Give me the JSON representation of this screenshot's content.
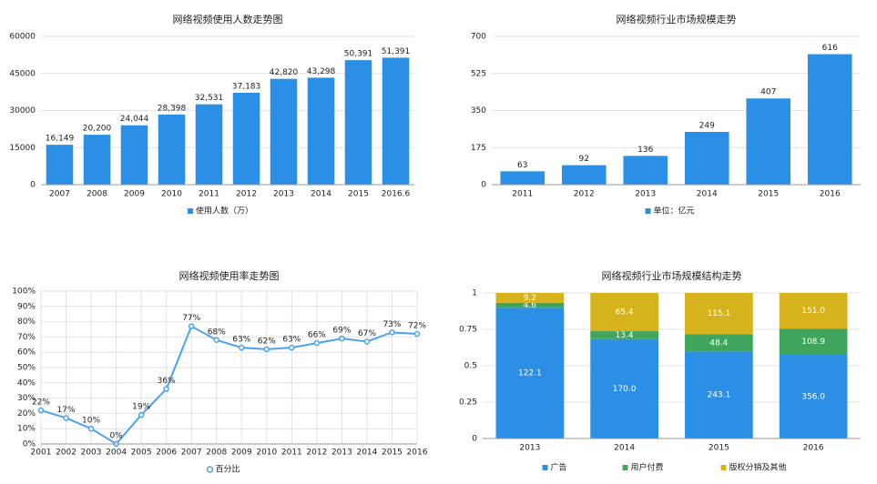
{
  "chart_data": [
    {
      "type": "bar",
      "title": "网络视频使用人数走势图",
      "categories": [
        "2007",
        "2008",
        "2009",
        "2010",
        "2011",
        "2012",
        "2013",
        "2014",
        "2015",
        "2016.6"
      ],
      "series": [
        {
          "name": "使用人数（万）",
          "color": "#2b8fe6",
          "values": [
            16149,
            20200,
            24044,
            28398,
            32531,
            37183,
            42820,
            43298,
            50391,
            51391
          ],
          "value_labels": [
            "16,149",
            "20,200",
            "24,044",
            "28,398",
            "32,531",
            "37,183",
            "42,820",
            "43,298",
            "50,391",
            "51,391"
          ]
        }
      ],
      "ylim": [
        0,
        60000
      ],
      "yticks": [
        0,
        15000,
        30000,
        45000,
        60000
      ],
      "grid": true
    },
    {
      "type": "bar",
      "title": "网络视频行业市场规模走势",
      "categories": [
        "2011",
        "2012",
        "2013",
        "2014",
        "2015",
        "2016"
      ],
      "series": [
        {
          "name": "单位：亿元",
          "color": "#2b8fe6",
          "values": [
            63,
            92,
            136,
            249,
            407,
            616
          ]
        }
      ],
      "ylim": [
        0,
        700
      ],
      "yticks": [
        0,
        175,
        350,
        525,
        700
      ],
      "grid": true
    },
    {
      "type": "line",
      "title": "网络视频使用率走势图",
      "categories": [
        "2001",
        "2002",
        "2003",
        "2004",
        "2005",
        "2006",
        "2007",
        "2008",
        "2009",
        "2010",
        "2011",
        "2012",
        "2013",
        "2014",
        "2015",
        "2016"
      ],
      "series": [
        {
          "name": "百分比",
          "color": "#4aa3ef",
          "values": [
            22,
            17,
            10,
            0,
            19,
            36,
            77,
            68,
            63,
            62,
            63,
            66,
            69,
            67,
            73,
            72
          ],
          "value_labels": [
            "22%",
            "17%",
            "10%",
            "0%",
            "19%",
            "36%",
            "77%",
            "68%",
            "63%",
            "62%",
            "63%",
            "66%",
            "69%",
            "67%",
            "73%",
            "72%"
          ]
        }
      ],
      "ylim": [
        0,
        100
      ],
      "yticks": [
        {
          "value": 0,
          "label": "0%"
        },
        {
          "value": 10,
          "label": "10%"
        },
        {
          "value": 20,
          "label": "20%"
        },
        {
          "value": 30,
          "label": "30%"
        },
        {
          "value": 40,
          "label": "40%"
        },
        {
          "value": 50,
          "label": "50%"
        },
        {
          "value": 60,
          "label": "60%"
        },
        {
          "value": 70,
          "label": "70%"
        },
        {
          "value": 80,
          "label": "80%"
        },
        {
          "value": 90,
          "label": "90%"
        },
        {
          "value": 100,
          "label": "100%"
        }
      ],
      "grid": true
    },
    {
      "type": "bar",
      "stacked": "percent",
      "title": "网络视频行业市场规模结构走势",
      "categories": [
        "2013",
        "2014",
        "2015",
        "2016"
      ],
      "series": [
        {
          "name": "广告",
          "color": "#2b8fe6",
          "values": [
            122.1,
            170.0,
            243.1,
            356.0
          ],
          "value_labels": [
            "122.1",
            "170.0",
            "243.1",
            "356.0"
          ]
        },
        {
          "name": "用户付费",
          "color": "#3fa55c",
          "values": [
            4.6,
            13.4,
            48.4,
            108.9
          ],
          "value_labels": [
            "4.6",
            "13.4",
            "48.4",
            "108.9"
          ]
        },
        {
          "name": "版权分销及其他",
          "color": "#d6b21c",
          "values": [
            9.2,
            65.4,
            115.1,
            151.0
          ],
          "value_labels": [
            "9.2",
            "65.4",
            "115.1",
            "151.0"
          ]
        }
      ],
      "ylim": [
        0,
        1
      ],
      "yticks": [
        0,
        0.25,
        0.5,
        0.75,
        1
      ],
      "grid": true
    }
  ]
}
